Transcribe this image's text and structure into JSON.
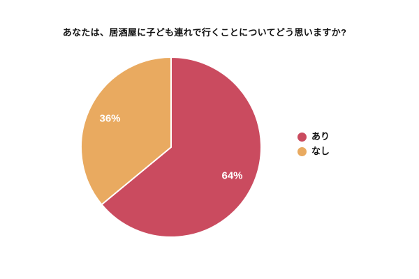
{
  "title": "あなたは、居酒屋に子ども連れで行くことについてどう思いますか?",
  "colors": {
    "background": "#ffffff",
    "title_text": "#111111",
    "legend_text": "#111111",
    "slice_label_text": "#ffffff",
    "slice_border": "#ffffff",
    "series_red": "#ca4b5f",
    "series_orange": "#e9aa60"
  },
  "chart_data": {
    "type": "pie",
    "title": "あなたは、居酒屋に子ども連れで行くことについてどう思いますか?",
    "start_angle_deg": 0,
    "direction": "clockwise",
    "legend_position": "right",
    "slices": [
      {
        "label": "あり",
        "value": 64,
        "display": "64%",
        "color": "#ca4b5f"
      },
      {
        "label": "なし",
        "value": 36,
        "display": "36%",
        "color": "#e9aa60"
      }
    ]
  }
}
